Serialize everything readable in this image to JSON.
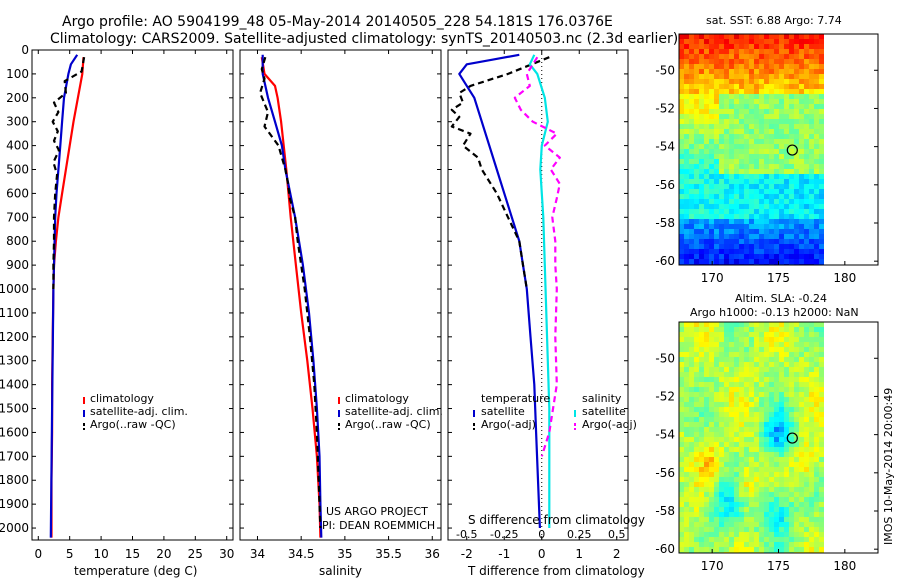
{
  "header": {
    "title_line1": "Argo profile: AO 5904199_48 05-May-2014 20140505_228 54.181S 176.0376E",
    "title_line2": "Climatology: CARS2009. Satellite-adjusted climatology: synTS_20140503.nc (2.3d earlier)"
  },
  "colors": {
    "climatology": "#ff0000",
    "satellite": "#0000cc",
    "argo": "#000000",
    "sat_salinity": "#00e5e5",
    "argo_salinity": "#ff00ff"
  },
  "depth_ticks": [
    "0",
    "100",
    "200",
    "300",
    "400",
    "500",
    "600",
    "700",
    "800",
    "900",
    "1000",
    "1100",
    "1200",
    "1300",
    "1400",
    "1500",
    "1600",
    "1700",
    "1800",
    "1900",
    "2000"
  ],
  "chart_data": [
    {
      "type": "line",
      "panel": "temperature",
      "xlabel": "temperature (deg C)",
      "xlim": [
        -1,
        31
      ],
      "ylim": [
        2050,
        0
      ],
      "x_ticks": [
        "0",
        "5",
        "10",
        "15",
        "20",
        "25",
        "30"
      ],
      "legend": [
        "climatology",
        "satellite-adj. clim.",
        "Argo(..raw -QC)"
      ],
      "series": [
        {
          "name": "climatology",
          "depth": [
            30,
            100,
            200,
            300,
            400,
            500,
            600,
            700,
            800,
            900,
            1000,
            1200,
            1400,
            1600,
            1800,
            2000,
            2040
          ],
          "values": [
            7.2,
            7.0,
            6.3,
            5.6,
            5.0,
            4.4,
            3.8,
            3.2,
            2.8,
            2.5,
            2.4,
            2.3,
            2.2,
            2.2,
            2.1,
            2.1,
            2.1
          ]
        },
        {
          "name": "satellite-adj. clim.",
          "depth": [
            20,
            60,
            100,
            200,
            300,
            400,
            500,
            600,
            700,
            800,
            900,
            1000,
            1500,
            2040
          ],
          "values": [
            6.2,
            5.2,
            4.8,
            4.1,
            3.8,
            3.5,
            3.2,
            2.9,
            2.7,
            2.6,
            2.5,
            2.4,
            2.2,
            2.0
          ]
        },
        {
          "name": "Argo(..raw -QC)",
          "depth": [
            30,
            60,
            90,
            130,
            180,
            220,
            260,
            300,
            340,
            380,
            420,
            470,
            520,
            600,
            700,
            800,
            900,
            1000
          ],
          "values": [
            7.3,
            7.1,
            6.9,
            4.2,
            4.4,
            2.5,
            3.2,
            2.3,
            3.1,
            2.5,
            3.3,
            2.4,
            3.0,
            2.7,
            2.5,
            2.5,
            2.4,
            2.4
          ]
        }
      ]
    },
    {
      "type": "line",
      "panel": "salinity",
      "xlabel": "salinity",
      "xlim": [
        33.8,
        36.1
      ],
      "ylim": [
        2050,
        0
      ],
      "x_ticks": [
        "34",
        "34.5",
        "35",
        "35.5",
        "36"
      ],
      "legend": [
        "climatology",
        "satellite-adj. clim.",
        "Argo(..raw -QC)"
      ],
      "annotation": [
        "US ARGO PROJECT",
        "PI: DEAN ROEMMICH"
      ],
      "series": [
        {
          "name": "climatology",
          "depth": [
            30,
            100,
            150,
            200,
            300,
            400,
            500,
            700,
            900,
            1100,
            1300,
            1500,
            1700,
            1900,
            2040
          ],
          "values": [
            34.05,
            34.08,
            34.2,
            34.23,
            34.27,
            34.3,
            34.33,
            34.38,
            34.44,
            34.5,
            34.57,
            34.63,
            34.68,
            34.71,
            34.72
          ]
        },
        {
          "name": "satellite-adj. clim.",
          "depth": [
            20,
            100,
            200,
            300,
            400,
            500,
            700,
            900,
            1100,
            1300,
            1500,
            1700,
            1900,
            2040
          ],
          "values": [
            34.06,
            34.06,
            34.12,
            34.2,
            34.28,
            34.32,
            34.43,
            34.52,
            34.59,
            34.64,
            34.68,
            34.71,
            34.72,
            34.73
          ]
        },
        {
          "name": "Argo(..raw -QC)",
          "depth": [
            30,
            80,
            120,
            180,
            260,
            320,
            400,
            450,
            500,
            560,
            620,
            700,
            800,
            900,
            1000,
            1200,
            1400,
            1600,
            1800,
            1900,
            2000
          ],
          "values": [
            34.09,
            34.05,
            34.08,
            34.03,
            34.12,
            34.08,
            34.24,
            34.28,
            34.32,
            34.35,
            34.37,
            34.43,
            34.46,
            34.5,
            34.54,
            34.6,
            34.65,
            34.68,
            34.7,
            34.71,
            34.72
          ]
        }
      ]
    },
    {
      "type": "line",
      "panel": "difference",
      "xlabel": "T difference from climatology",
      "xlabel2": "S difference from climatology",
      "xlim": [
        -2.5,
        2.3
      ],
      "ylim": [
        2050,
        0
      ],
      "x_ticks": [
        "-2",
        "-1",
        "0",
        "1",
        "2"
      ],
      "x2_ticks": [
        "-0.5",
        "-0.25",
        "0",
        "0.25",
        "0.5"
      ],
      "legend_headers": [
        "temperature",
        "salinity"
      ],
      "legend": [
        "satellite",
        "Argo(-adj)",
        "satellite",
        "Argo(-adj)"
      ],
      "series": [
        {
          "name": "T satellite",
          "depth": [
            20,
            40,
            60,
            100,
            150,
            200,
            300,
            400,
            500,
            600,
            700,
            800,
            900,
            1000,
            1200,
            1400,
            1600,
            1800,
            2000
          ],
          "values": [
            -0.6,
            -1.3,
            -2.0,
            -2.2,
            -2.0,
            -1.8,
            -1.6,
            -1.4,
            -1.2,
            -1.0,
            -0.8,
            -0.6,
            -0.5,
            -0.4,
            -0.3,
            -0.2,
            -0.15,
            -0.1,
            -0.05
          ]
        },
        {
          "name": "T Argo(-adj)",
          "depth": [
            30,
            100,
            150,
            180,
            220,
            250,
            280,
            320,
            350,
            400,
            450,
            500,
            600,
            700,
            800,
            900,
            1000
          ],
          "values": [
            0.2,
            -0.9,
            -1.9,
            -2.2,
            -2.1,
            -2.4,
            -2.2,
            -2.4,
            -1.9,
            -2.1,
            -1.7,
            -1.6,
            -1.2,
            -0.9,
            -0.6,
            -0.5,
            -0.4
          ]
        },
        {
          "name": "S satellite",
          "depth": [
            20,
            60,
            100,
            200,
            300,
            400,
            500,
            700,
            900,
            1100,
            1300,
            1500,
            1700,
            1900,
            2000
          ],
          "values": [
            -0.05,
            -0.08,
            -0.03,
            0.02,
            0.04,
            0.0,
            -0.01,
            0.01,
            0.02,
            0.03,
            0.04,
            0.05,
            0.05,
            0.05,
            0.05
          ]
        },
        {
          "name": "S Argo(-adj)",
          "depth": [
            30,
            100,
            150,
            200,
            250,
            300,
            350,
            400,
            450,
            500,
            560,
            620,
            700,
            800,
            900,
            1000,
            1200,
            1400,
            1600,
            1700
          ],
          "values": [
            -0.03,
            -0.1,
            -0.08,
            -0.18,
            -0.14,
            -0.06,
            0.1,
            0.02,
            0.12,
            0.06,
            0.12,
            0.1,
            0.07,
            0.09,
            0.09,
            0.1,
            0.09,
            0.1,
            0.05,
            0.0
          ]
        }
      ]
    },
    {
      "type": "heatmap",
      "panel": "sst-map",
      "title": "sat. SST: 6.88 Argo: 7.74",
      "x_ticks": [
        "170",
        "175",
        "180"
      ],
      "y_ticks": [
        "-50",
        "-52",
        "-54",
        "-56",
        "-58",
        "-60"
      ],
      "xlim": [
        167.5,
        182.5
      ],
      "ylim": [
        -60.2,
        -48.1
      ],
      "marker": {
        "lon": 176.04,
        "lat": -54.18
      }
    },
    {
      "type": "heatmap",
      "panel": "sla-map",
      "title": "Altim. SLA: -0.24",
      "subtitle": "Argo h1000: -0.13 h2000: NaN",
      "x_ticks": [
        "170",
        "175",
        "180"
      ],
      "y_ticks": [
        "-50",
        "-52",
        "-54",
        "-56",
        "-58",
        "-60"
      ],
      "xlim": [
        167.5,
        182.5
      ],
      "ylim": [
        -60.2,
        -48.1
      ],
      "marker": {
        "lon": 176.04,
        "lat": -54.18
      }
    }
  ],
  "footer": {
    "stamp": "IMOS 10-May-2014 20:00:49"
  }
}
